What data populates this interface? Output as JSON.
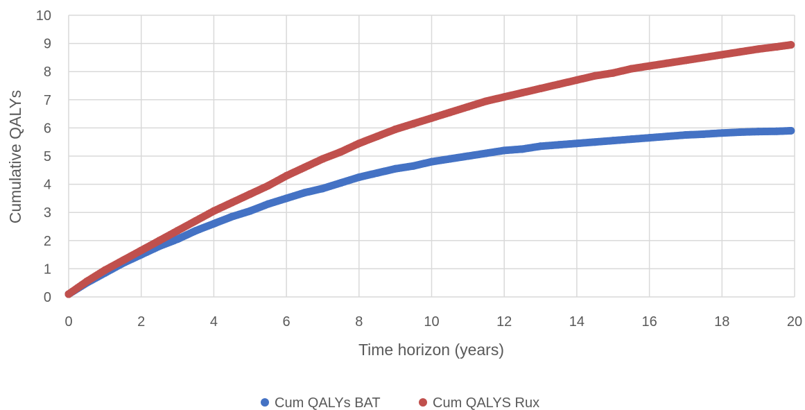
{
  "chart_data": {
    "type": "scatter",
    "title": "",
    "xlabel": "Time horizon (years)",
    "ylabel": "Cumulative QALYs",
    "xlim": [
      0,
      20
    ],
    "ylim": [
      0,
      10
    ],
    "x_ticks": [
      0,
      2,
      4,
      6,
      8,
      10,
      12,
      14,
      16,
      18,
      20
    ],
    "y_ticks": [
      0,
      1,
      2,
      3,
      4,
      5,
      6,
      7,
      8,
      9,
      10
    ],
    "grid": true,
    "legend_position": "bottom",
    "series": [
      {
        "name": "Cum QALYs BAT",
        "color": "#4472c4",
        "x": [
          0,
          0.5,
          1,
          1.5,
          2,
          2.5,
          3,
          3.5,
          4,
          4.5,
          5,
          5.5,
          6,
          6.5,
          7,
          7.5,
          8,
          8.5,
          9,
          9.5,
          10,
          10.5,
          11,
          11.5,
          12,
          12.5,
          13,
          13.5,
          14,
          14.5,
          15,
          15.5,
          16,
          16.5,
          17,
          17.5,
          18,
          18.5,
          19,
          19.5,
          19.9
        ],
        "y": [
          0.1,
          0.5,
          0.85,
          1.2,
          1.5,
          1.8,
          2.05,
          2.35,
          2.6,
          2.85,
          3.05,
          3.3,
          3.5,
          3.7,
          3.85,
          4.05,
          4.25,
          4.4,
          4.55,
          4.65,
          4.8,
          4.9,
          5.0,
          5.1,
          5.2,
          5.25,
          5.35,
          5.4,
          5.45,
          5.5,
          5.55,
          5.6,
          5.65,
          5.7,
          5.75,
          5.78,
          5.82,
          5.85,
          5.87,
          5.88,
          5.9
        ]
      },
      {
        "name": "Cum QALYS Rux",
        "color": "#c0504d",
        "x": [
          0,
          0.5,
          1,
          1.5,
          2,
          2.5,
          3,
          3.5,
          4,
          4.5,
          5,
          5.5,
          6,
          6.5,
          7,
          7.5,
          8,
          8.5,
          9,
          9.5,
          10,
          10.5,
          11,
          11.5,
          12,
          12.5,
          13,
          13.5,
          14,
          14.5,
          15,
          15.5,
          16,
          16.5,
          17,
          17.5,
          18,
          18.5,
          19,
          19.5,
          19.9
        ],
        "y": [
          0.1,
          0.55,
          0.95,
          1.3,
          1.65,
          2.0,
          2.35,
          2.7,
          3.05,
          3.35,
          3.65,
          3.95,
          4.3,
          4.6,
          4.9,
          5.15,
          5.45,
          5.7,
          5.95,
          6.15,
          6.35,
          6.55,
          6.75,
          6.95,
          7.1,
          7.25,
          7.4,
          7.55,
          7.7,
          7.85,
          7.95,
          8.1,
          8.2,
          8.3,
          8.4,
          8.5,
          8.6,
          8.7,
          8.8,
          8.88,
          8.95
        ]
      }
    ]
  }
}
